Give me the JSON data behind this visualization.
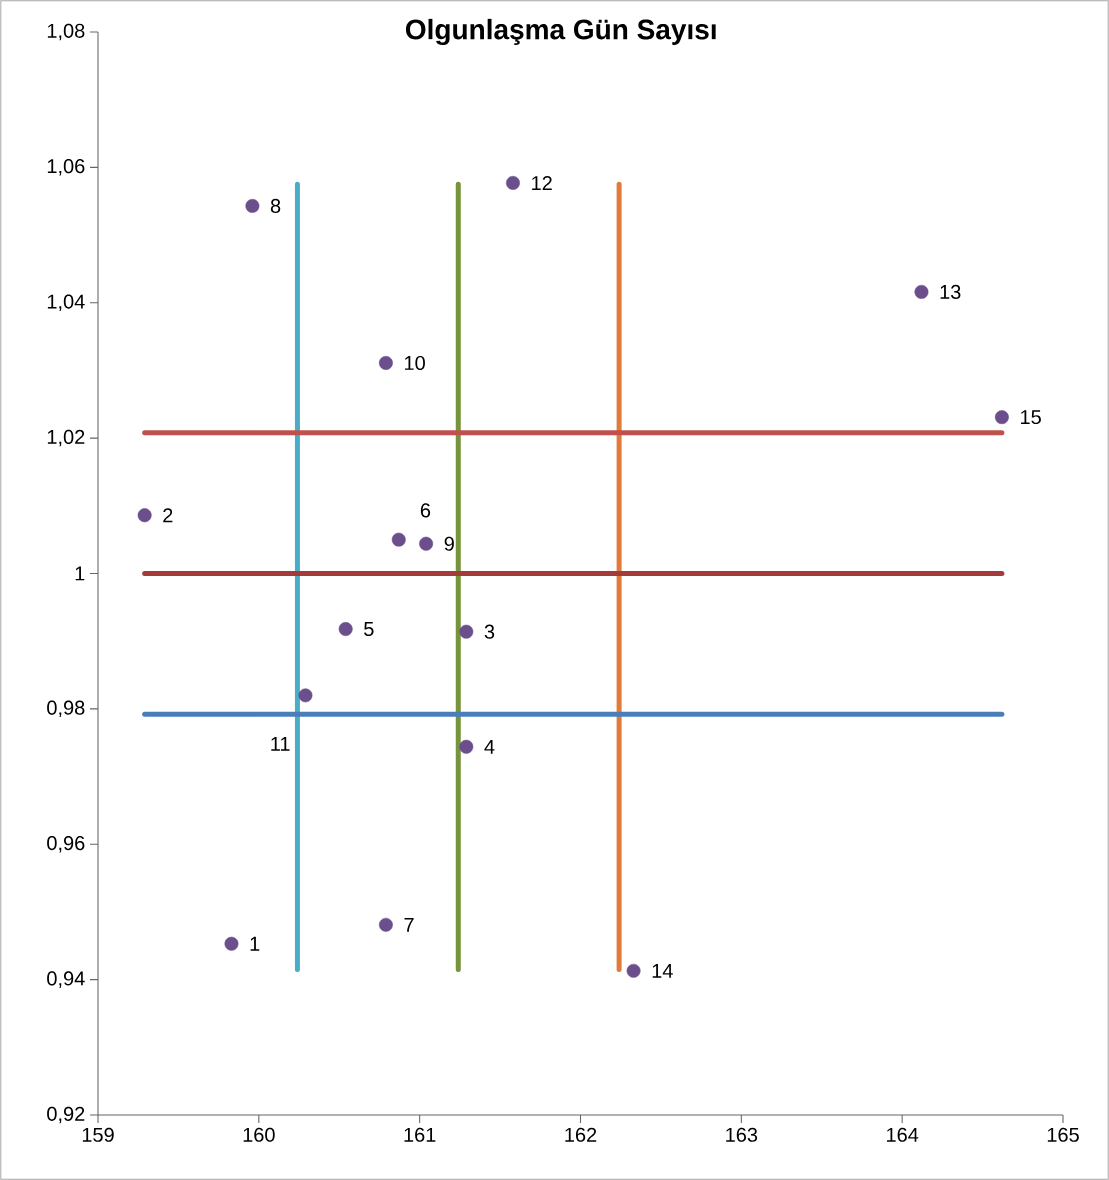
{
  "chart_data": {
    "type": "scatter",
    "title": "**Olgunlaşma Gün Sayısı**",
    "xlim": [
      159,
      165
    ],
    "ylim": [
      0.92,
      1.08
    ],
    "xticks": [
      159,
      160,
      161,
      162,
      163,
      164,
      165
    ],
    "yticks": [
      {
        "value": 0.92,
        "label": "0,92"
      },
      {
        "value": 0.94,
        "label": "0,94"
      },
      {
        "value": 0.96,
        "label": "0,96"
      },
      {
        "value": 0.98,
        "label": "0,98"
      },
      {
        "value": 1,
        "label": "1"
      },
      {
        "value": 1.02,
        "label": "1,02"
      },
      {
        "value": 1.04,
        "label": "1,04"
      },
      {
        "value": 1.06,
        "label": "1,06"
      },
      {
        "value": 1.08,
        "label": "1,08"
      }
    ],
    "series": [
      {
        "type": "line",
        "color": "#4bacc6",
        "marker": "none",
        "x": [
          160.24,
          160.24
        ],
        "values": [
          0.9415,
          1.0575
        ]
      },
      {
        "type": "line",
        "color": "#77933c",
        "marker": "none",
        "x": [
          161.24,
          161.24
        ],
        "values": [
          0.9415,
          1.0575
        ]
      },
      {
        "type": "line",
        "color": "#e07b39",
        "marker": "none",
        "x": [
          162.24,
          162.24
        ],
        "values": [
          0.9415,
          1.0575
        ]
      },
      {
        "type": "line",
        "color": "#c0504d",
        "marker": "none",
        "x": [
          159.29,
          164.62
        ],
        "values": [
          1.0208,
          1.0208
        ]
      },
      {
        "type": "line",
        "color": "#a33b3a",
        "marker": "none",
        "x": [
          159.29,
          164.62
        ],
        "values": [
          1.0,
          1.0
        ]
      },
      {
        "type": "line",
        "color": "#4a7ebb",
        "marker": "none",
        "x": [
          159.29,
          164.62
        ],
        "values": [
          0.9792,
          0.9792
        ]
      },
      {
        "type": "scatter",
        "color": "#6b4e8c",
        "marker": "circle",
        "x": [
          159.83,
          159.29,
          161.29,
          161.29,
          160.54,
          160.87,
          160.79,
          159.96,
          161.04,
          160.79,
          160.29,
          161.58,
          164.12,
          162.33,
          164.62
        ],
        "values": [
          0.9453,
          1.0086,
          0.9914,
          0.9744,
          0.9918,
          1.005,
          0.9481,
          1.0543,
          1.0044,
          1.0311,
          0.982,
          1.0577,
          1.0416,
          0.9413,
          1.0231
        ]
      }
    ],
    "annotations": [
      {
        "text": "1",
        "x": 159.83,
        "y": 0.9453
      },
      {
        "text": "2",
        "x": 159.29,
        "y": 1.0086
      },
      {
        "text": "3",
        "x": 161.29,
        "y": 0.9914
      },
      {
        "text": "4",
        "x": 161.29,
        "y": 0.9744
      },
      {
        "text": "5",
        "x": 160.54,
        "y": 0.9918
      },
      {
        "text": "6",
        "x": 160.87,
        "y": 1.005
      },
      {
        "text": "7",
        "x": 160.79,
        "y": 0.9481
      },
      {
        "text": "8",
        "x": 159.96,
        "y": 1.0543
      },
      {
        "text": "9",
        "x": 161.04,
        "y": 1.0044
      },
      {
        "text": "10",
        "x": 160.79,
        "y": 1.0311
      },
      {
        "text": "11",
        "x": 160.29,
        "y": 0.982
      },
      {
        "text": "12",
        "x": 161.58,
        "y": 1.0577
      },
      {
        "text": "13",
        "x": 164.12,
        "y": 1.0416
      },
      {
        "text": "14",
        "x": 162.33,
        "y": 0.9413
      },
      {
        "text": "15",
        "x": 164.62,
        "y": 1.0231
      }
    ]
  }
}
